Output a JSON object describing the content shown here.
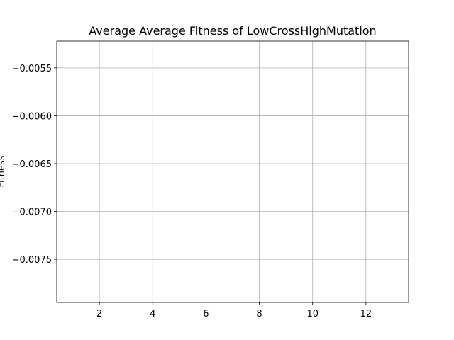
{
  "chart_data": {
    "type": "line",
    "title": "Average Average Fitness of LowCrossHighMutation",
    "xlabel": "",
    "ylabel": "Fitness",
    "xlim": [
      0.4,
      13.6
    ],
    "ylim": [
      -0.00795,
      -0.00522
    ],
    "xticks": [
      2,
      4,
      6,
      8,
      10,
      12
    ],
    "xtick_labels": [
      "2",
      "4",
      "6",
      "8",
      "10",
      "12"
    ],
    "yticks": [
      -0.0055,
      -0.006,
      -0.0065,
      -0.007,
      -0.0075
    ],
    "ytick_labels": [
      "−0.0055",
      "−0.0060",
      "−0.0065",
      "−0.0070",
      "−0.0075"
    ],
    "grid": true,
    "series": [
      {
        "values": []
      }
    ]
  }
}
